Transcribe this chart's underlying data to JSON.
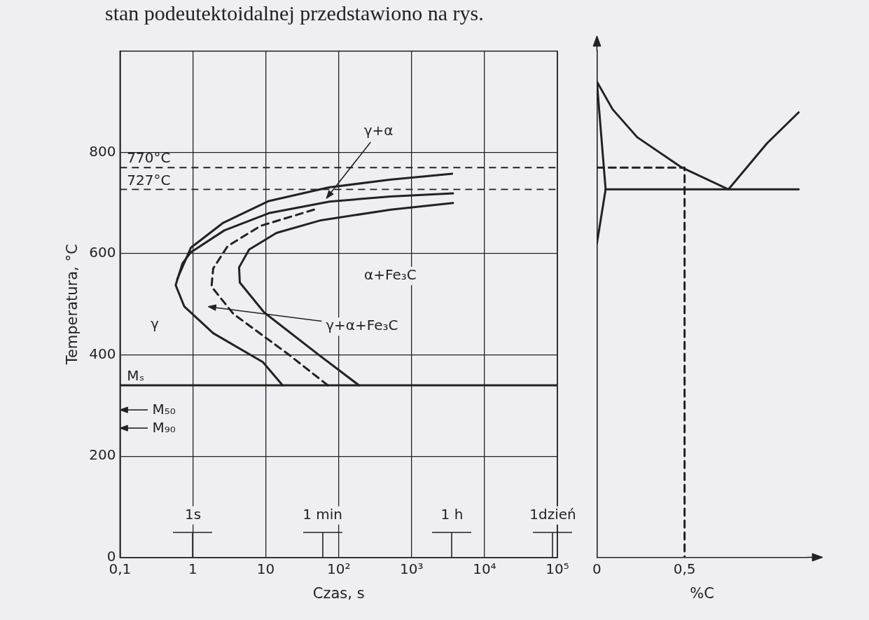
{
  "chart_data": [
    {
      "type": "line",
      "xlabel": "Czas, s",
      "ylabel": "Temperatura, °C",
      "log": "x",
      "xlim": [
        0.1,
        100000
      ],
      "xticks": [
        {
          "value": 0.1,
          "label": "0,1"
        },
        1,
        10,
        {
          "value": 100,
          "label": "10²"
        },
        {
          "value": 1000,
          "label": "10³"
        },
        {
          "value": 10000,
          "label": "10⁴"
        },
        {
          "value": 100000,
          "label": "10⁵"
        }
      ],
      "ylim": [
        0,
        1000
      ],
      "yticks": [
        0,
        200,
        400,
        600,
        800
      ],
      "grid": true,
      "marker": "none",
      "series": [
        {
          "color": "#222222",
          "x": [
            17,
            9.1,
            1.9,
            0.76,
            0.58,
            0.72,
            0.94,
            2.7,
            11,
            75,
            510,
            3700
          ],
          "values": [
            340,
            386,
            443,
            496,
            538,
            581,
            603,
            646,
            680,
            703,
            713,
            719
          ]
        },
        {
          "color": "#222222",
          "x": [
            0.61,
            0.94,
            2.6,
            11,
            73,
            500,
            3600
          ],
          "values": [
            550,
            612,
            661,
            704,
            731,
            746,
            758
          ]
        },
        {
          "color": "#222222",
          "line_style": "dashed",
          "x": [
            71,
            21,
            3.6,
            1.8,
            1.9,
            3.0,
            8.5,
            51
          ],
          "values": [
            340,
            400,
            481,
            535,
            571,
            615,
            655,
            689
          ]
        },
        {
          "color": "#222222",
          "x": [
            190,
            57,
            9.5,
            4.4,
            4.3,
            5.9,
            14,
            57,
            520,
            3700
          ],
          "values": [
            340,
            397,
            484,
            543,
            573,
            608,
            641,
            666,
            687,
            700
          ]
        }
      ],
      "ref_lines": [
        {
          "axis": "y",
          "value": 340,
          "label": "Mₛ",
          "line_style": "solid"
        },
        {
          "axis": "y",
          "value": 727,
          "label": "727°C",
          "line_style": "dashed"
        },
        {
          "axis": "y",
          "value": 770,
          "label": "770°C",
          "line_style": "dashed"
        }
      ],
      "annotations": [
        "1s",
        "1 min",
        "1 h",
        "1dzień",
        "M₉₀",
        "M₅₀",
        "γ",
        "γ+α+Fe₃C",
        "α+Fe₃C",
        "γ+α",
        "stan podeutektoidalnej przedstawiono na rys."
      ]
    },
    {
      "type": "line",
      "xlabel": "%C",
      "xlim": [
        0,
        1.2
      ],
      "xticks": [
        0,
        {
          "value": 0.5,
          "label": "0,5"
        }
      ],
      "ylim": [
        0,
        1000
      ],
      "tick_labels": "x",
      "marker": "none",
      "series": [
        {
          "color": "#222222",
          "x": [
            0.05,
            1.15
          ],
          "values": [
            727,
            727
          ]
        },
        {
          "color": "#222222",
          "x": [
            0,
            0.05,
            0,
            0.09,
            0.23,
            0.48,
            0.75,
            0.97,
            1.15
          ],
          "values": [
            620,
            727,
            940,
            885,
            830,
            771,
            727,
            818,
            879
          ]
        },
        {
          "color": "#222222",
          "line_style": "dashed",
          "x": [
            0,
            0.5,
            0.5
          ],
          "values": [
            770,
            770,
            0
          ]
        }
      ]
    }
  ]
}
